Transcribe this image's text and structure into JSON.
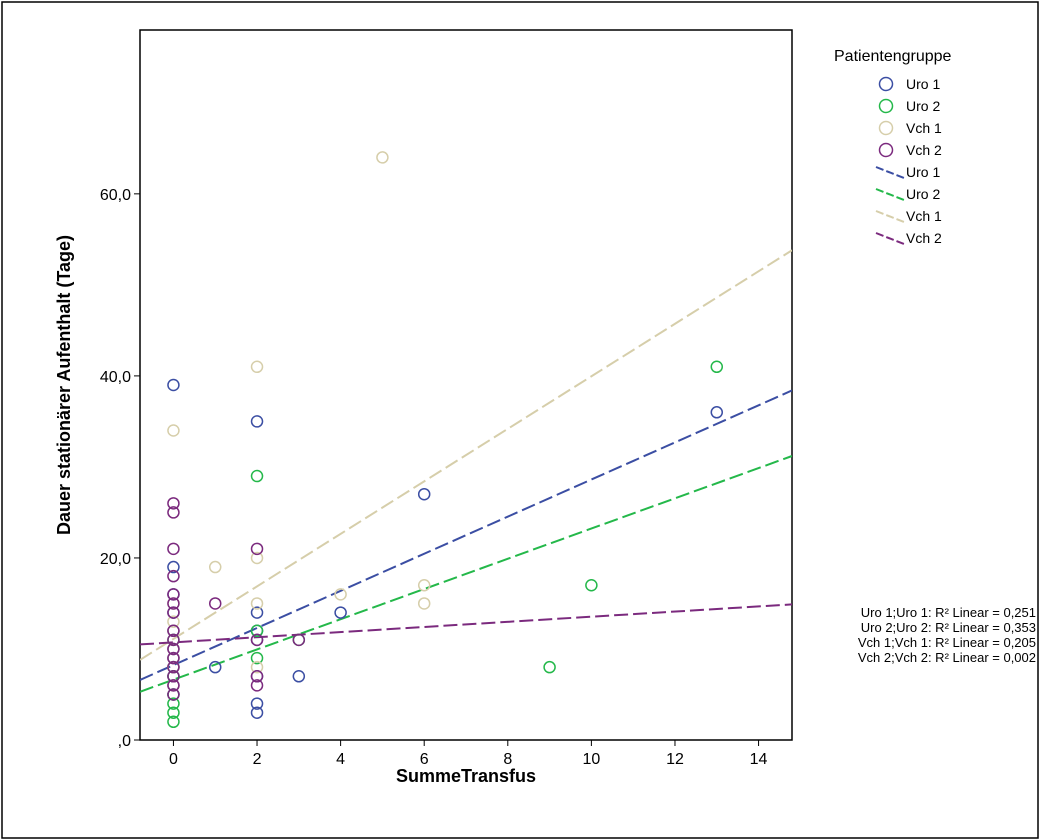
{
  "chart_data": {
    "type": "scatter",
    "title": "",
    "xlabel": "SummeTransfus",
    "ylabel": "Dauer stationärer Aufenthalt (Tage)",
    "xlim": [
      -0.8,
      14.8
    ],
    "ylim": [
      0,
      78
    ],
    "x_ticks": [
      0,
      2,
      4,
      6,
      8,
      10,
      12,
      14
    ],
    "x_tick_labels": [
      "0",
      "2",
      "4",
      "6",
      "8",
      "10",
      "12",
      "14"
    ],
    "y_ticks": [
      0,
      20,
      40,
      60
    ],
    "y_tick_labels": [
      ",0",
      "20,0",
      "40,0",
      "60,0"
    ],
    "grid": false,
    "legend": {
      "title": "Patientengruppe",
      "placement": "right",
      "marker_entries": [
        "Uro 1",
        "Uro 2",
        "Vch 1",
        "Vch 2"
      ],
      "line_entries": [
        "Uro 1",
        "Uro 2",
        "Vch 1",
        "Vch 2"
      ]
    },
    "series": [
      {
        "name": "Uro 1",
        "color": "#3b4ea3",
        "points": [
          [
            0,
            39
          ],
          [
            0,
            19
          ],
          [
            0,
            16
          ],
          [
            0,
            14
          ],
          [
            0,
            12
          ],
          [
            0,
            10
          ],
          [
            0,
            9
          ],
          [
            0,
            8
          ],
          [
            0,
            7
          ],
          [
            0,
            6
          ],
          [
            0,
            5
          ],
          [
            1,
            8
          ],
          [
            2,
            35
          ],
          [
            2,
            14
          ],
          [
            2,
            12
          ],
          [
            2,
            11
          ],
          [
            2,
            7
          ],
          [
            2,
            4
          ],
          [
            2,
            3
          ],
          [
            3,
            7
          ],
          [
            4,
            14
          ],
          [
            6,
            27
          ],
          [
            13,
            36
          ]
        ],
        "fit": {
          "x": [
            -0.8,
            14.8
          ],
          "y": [
            6.6,
            38.4
          ]
        }
      },
      {
        "name": "Uro 2",
        "color": "#24b84a",
        "points": [
          [
            0,
            11
          ],
          [
            0,
            8
          ],
          [
            0,
            7
          ],
          [
            0,
            5
          ],
          [
            0,
            4
          ],
          [
            0,
            3
          ],
          [
            0,
            2
          ],
          [
            2,
            29
          ],
          [
            2,
            12
          ],
          [
            2,
            9
          ],
          [
            3,
            11
          ],
          [
            9,
            8
          ],
          [
            10,
            17
          ],
          [
            13,
            41
          ]
        ],
        "fit": {
          "x": [
            -0.8,
            14.8
          ],
          "y": [
            5.3,
            31.2
          ]
        }
      },
      {
        "name": "Vch 1",
        "color": "#d6ceaa",
        "points": [
          [
            0,
            34
          ],
          [
            0,
            15
          ],
          [
            0,
            13
          ],
          [
            0,
            12
          ],
          [
            0,
            10
          ],
          [
            0,
            9
          ],
          [
            0,
            8
          ],
          [
            0,
            6
          ],
          [
            1,
            19
          ],
          [
            2,
            41
          ],
          [
            2,
            20
          ],
          [
            2,
            15
          ],
          [
            2,
            8
          ],
          [
            4,
            16
          ],
          [
            5,
            64
          ],
          [
            6,
            17
          ],
          [
            6,
            15
          ]
        ],
        "fit": {
          "x": [
            -0.8,
            14.8
          ],
          "y": [
            8.8,
            53.8
          ]
        }
      },
      {
        "name": "Vch 2",
        "color": "#7b2a7e",
        "points": [
          [
            0,
            26
          ],
          [
            0,
            25
          ],
          [
            0,
            21
          ],
          [
            0,
            18
          ],
          [
            0,
            16
          ],
          [
            0,
            15
          ],
          [
            0,
            14
          ],
          [
            0,
            12
          ],
          [
            0,
            11
          ],
          [
            0,
            10
          ],
          [
            0,
            9
          ],
          [
            0,
            8
          ],
          [
            0,
            7
          ],
          [
            0,
            6
          ],
          [
            0,
            5
          ],
          [
            1,
            15
          ],
          [
            2,
            21
          ],
          [
            2,
            11
          ],
          [
            2,
            7
          ],
          [
            2,
            6
          ],
          [
            3,
            11
          ]
        ],
        "fit": {
          "x": [
            -0.8,
            14.8
          ],
          "y": [
            10.5,
            14.9
          ]
        }
      }
    ],
    "annotations": [
      "Uro 1;Uro 1: R² Linear = 0,251",
      "Uro 2;Uro 2: R² Linear = 0,353",
      "Vch 1;Vch 1: R² Linear = 0,205",
      "Vch 2;Vch 2: R² Linear = 0,002"
    ]
  }
}
